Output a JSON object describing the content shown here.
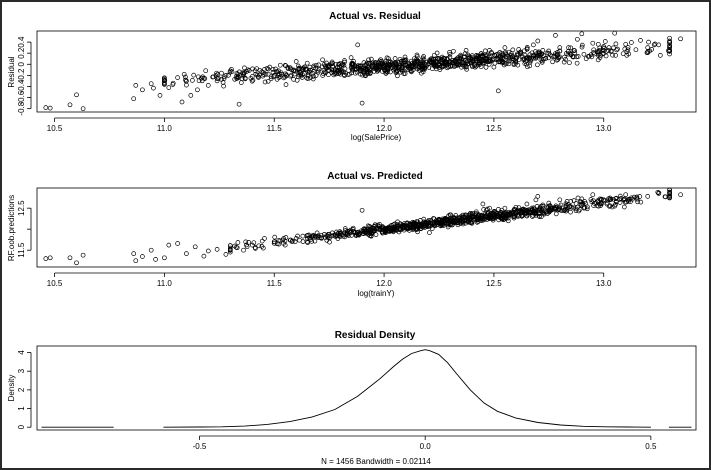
{
  "chart_data": [
    {
      "type": "scatter",
      "title": "Actual vs. Residual",
      "xlabel": "log(SalePrice)",
      "ylabel": "Residual",
      "x_ticks": [
        10.5,
        11.0,
        11.5,
        12.0,
        12.5,
        13.0
      ],
      "y_ticks": [
        -0.8,
        -0.6,
        -0.4,
        -0.2,
        0.0,
        0.2,
        0.4
      ],
      "xlim": [
        10.42,
        13.42
      ],
      "ylim": [
        -0.86,
        0.6
      ],
      "grid": false,
      "points": [
        [
          10.46,
          -0.78
        ],
        [
          10.48,
          -0.79
        ],
        [
          10.57,
          -0.73
        ],
        [
          10.6,
          -0.55
        ],
        [
          10.63,
          -0.8
        ],
        [
          10.86,
          -0.62
        ],
        [
          10.87,
          -0.38
        ],
        [
          10.9,
          -0.46
        ],
        [
          10.94,
          -0.35
        ],
        [
          10.95,
          -0.43
        ],
        [
          10.98,
          -0.56
        ],
        [
          11.02,
          -0.42
        ],
        [
          11.04,
          -0.34
        ],
        [
          11.06,
          -0.24
        ],
        [
          11.08,
          -0.68
        ],
        [
          11.09,
          -0.18
        ],
        [
          11.1,
          -0.3
        ],
        [
          11.12,
          -0.56
        ],
        [
          11.15,
          -0.46
        ],
        [
          11.18,
          -0.25
        ],
        [
          11.2,
          -0.38
        ],
        [
          11.22,
          -0.23
        ],
        [
          11.24,
          -0.3
        ],
        [
          11.26,
          -0.16
        ],
        [
          11.28,
          -0.2
        ],
        [
          11.3,
          -0.12
        ],
        [
          11.32,
          -0.27
        ],
        [
          11.34,
          -0.72
        ],
        [
          11.36,
          -0.18
        ],
        [
          11.38,
          -0.1
        ],
        [
          11.4,
          -0.22
        ],
        [
          11.42,
          -0.08
        ],
        [
          11.45,
          -0.15
        ],
        [
          11.48,
          -0.05
        ],
        [
          11.5,
          -0.2
        ],
        [
          11.52,
          -0.12
        ],
        [
          11.55,
          -0.02
        ],
        [
          11.58,
          -0.1
        ],
        [
          11.6,
          0.05
        ],
        [
          11.62,
          -0.15
        ],
        [
          11.65,
          0.02
        ],
        [
          11.68,
          -0.06
        ],
        [
          11.7,
          -0.12
        ],
        [
          11.72,
          0.08
        ],
        [
          11.75,
          -0.04
        ],
        [
          11.78,
          0.0
        ],
        [
          11.8,
          -0.1
        ],
        [
          11.82,
          0.04
        ],
        [
          11.85,
          0.12
        ],
        [
          11.88,
          0.35
        ],
        [
          11.9,
          -0.7
        ],
        [
          11.92,
          0.0
        ],
        [
          11.95,
          -0.04
        ],
        [
          11.98,
          0.06
        ],
        [
          12.0,
          -0.02
        ],
        [
          12.02,
          0.1
        ],
        [
          12.05,
          -0.05
        ],
        [
          12.08,
          0.02
        ],
        [
          12.1,
          0.08
        ],
        [
          12.12,
          -0.02
        ],
        [
          12.15,
          0.05
        ],
        [
          12.18,
          0.14
        ],
        [
          12.2,
          0.0
        ],
        [
          12.22,
          -0.08
        ],
        [
          12.25,
          0.08
        ],
        [
          12.28,
          0.02
        ],
        [
          12.3,
          0.18
        ],
        [
          12.32,
          -0.04
        ],
        [
          12.35,
          0.12
        ],
        [
          12.38,
          0.06
        ],
        [
          12.4,
          -0.02
        ],
        [
          12.42,
          0.16
        ],
        [
          12.45,
          0.08
        ],
        [
          12.48,
          0.25
        ],
        [
          12.5,
          0.1
        ],
        [
          12.52,
          -0.48
        ],
        [
          12.55,
          0.3
        ],
        [
          12.58,
          0.16
        ],
        [
          12.6,
          0.02
        ],
        [
          12.62,
          0.22
        ],
        [
          12.65,
          0.12
        ],
        [
          12.68,
          0.35
        ],
        [
          12.7,
          0.42
        ],
        [
          12.72,
          0.06
        ],
        [
          12.75,
          0.2
        ],
        [
          12.78,
          0.52
        ],
        [
          12.8,
          0.3
        ],
        [
          12.82,
          0.04
        ],
        [
          12.85,
          0.18
        ],
        [
          12.88,
          0.45
        ],
        [
          12.9,
          0.55
        ],
        [
          12.92,
          0.1
        ],
        [
          12.95,
          0.38
        ],
        [
          12.98,
          0.25
        ],
        [
          13.0,
          0.32
        ],
        [
          13.05,
          0.56
        ],
        [
          13.1,
          0.36
        ],
        [
          13.2,
          0.3
        ],
        [
          13.25,
          0.35
        ],
        [
          13.3,
          0.42
        ],
        [
          13.35,
          0.46
        ]
      ],
      "trend": {
        "x": [
          11.0,
          13.3
        ],
        "y": [
          -0.3,
          0.3
        ]
      },
      "scatter_sd": 0.07
    },
    {
      "type": "scatter",
      "title": "Actual vs. Predicted",
      "xlabel": "log(trainY)",
      "ylabel": "RF.oob.predictions",
      "x_ticks": [
        10.5,
        11.0,
        11.5,
        12.0,
        12.5,
        13.0
      ],
      "y_ticks": [
        11.5,
        12.0,
        12.5
      ],
      "y_tick_labels": [
        "11.5",
        "",
        "12.5"
      ],
      "xlim": [
        10.42,
        13.42
      ],
      "ylim": [
        11.1,
        12.98
      ],
      "grid": false,
      "points": [
        [
          10.46,
          11.3
        ],
        [
          10.48,
          11.32
        ],
        [
          10.57,
          11.32
        ],
        [
          10.6,
          11.2
        ],
        [
          10.63,
          11.38
        ],
        [
          10.86,
          11.42
        ],
        [
          10.87,
          11.25
        ],
        [
          10.9,
          11.35
        ],
        [
          10.94,
          11.5
        ],
        [
          10.96,
          11.28
        ],
        [
          11.0,
          11.32
        ],
        [
          11.02,
          11.62
        ],
        [
          11.06,
          11.66
        ],
        [
          11.1,
          11.42
        ],
        [
          11.14,
          11.58
        ],
        [
          11.18,
          11.36
        ],
        [
          11.2,
          11.48
        ],
        [
          11.24,
          11.52
        ],
        [
          11.28,
          11.4
        ],
        [
          11.32,
          11.6
        ],
        [
          11.36,
          11.5
        ],
        [
          11.4,
          11.62
        ],
        [
          11.45,
          11.55
        ],
        [
          11.5,
          11.7
        ],
        [
          11.55,
          11.62
        ],
        [
          11.6,
          11.78
        ],
        [
          11.65,
          11.7
        ],
        [
          11.7,
          11.8
        ],
        [
          11.75,
          11.88
        ],
        [
          11.8,
          11.82
        ],
        [
          11.85,
          11.92
        ],
        [
          11.9,
          12.45
        ],
        [
          11.95,
          11.96
        ],
        [
          12.0,
          11.98
        ],
        [
          12.05,
          12.05
        ],
        [
          12.1,
          12.08
        ],
        [
          12.15,
          12.12
        ],
        [
          12.2,
          12.18
        ],
        [
          12.25,
          12.22
        ],
        [
          12.3,
          12.25
        ],
        [
          12.35,
          12.3
        ],
        [
          12.4,
          12.36
        ],
        [
          12.45,
          12.6
        ],
        [
          12.48,
          12.5
        ],
        [
          12.5,
          12.42
        ],
        [
          12.55,
          12.5
        ],
        [
          12.6,
          12.52
        ],
        [
          12.65,
          12.6
        ],
        [
          12.7,
          12.78
        ],
        [
          12.75,
          12.62
        ],
        [
          12.8,
          12.7
        ],
        [
          12.85,
          12.66
        ],
        [
          12.9,
          12.72
        ],
        [
          12.95,
          12.82
        ],
        [
          13.0,
          12.7
        ],
        [
          13.05,
          12.55
        ],
        [
          13.1,
          12.82
        ],
        [
          13.15,
          12.74
        ],
        [
          13.2,
          12.78
        ],
        [
          13.25,
          12.85
        ],
        [
          13.3,
          12.8
        ],
        [
          13.35,
          12.82
        ]
      ],
      "trend": {
        "x": [
          11.3,
          13.3
        ],
        "y": [
          11.55,
          12.82
        ]
      },
      "scatter_sd": 0.06
    },
    {
      "type": "line",
      "title": "Residual Density",
      "xlabel": "N = 1456   Bandwidth = 0.02114",
      "ylabel": "Density",
      "x_ticks": [
        -0.5,
        0.0,
        0.5
      ],
      "y_ticks": [
        0,
        1,
        2,
        3,
        4
      ],
      "xlim": [
        -0.86,
        0.6
      ],
      "ylim": [
        -0.15,
        4.35
      ],
      "grid": false,
      "segments": [
        {
          "x": [
            -0.85,
            -0.84,
            -0.82,
            -0.8,
            -0.78,
            -0.76,
            -0.74,
            -0.72,
            -0.7,
            -0.69
          ],
          "y": [
            0.0,
            0.0,
            0.0,
            0.0,
            0.0,
            0.0,
            0.0,
            0.0,
            0.0,
            0.0
          ]
        },
        {
          "x": [
            -0.58,
            -0.5,
            -0.45,
            -0.4,
            -0.35,
            -0.3,
            -0.25,
            -0.2,
            -0.15,
            -0.1,
            -0.07,
            -0.05,
            -0.03,
            -0.01,
            0.0,
            0.01,
            0.03,
            0.05,
            0.07,
            0.1,
            0.13,
            0.16,
            0.2,
            0.25,
            0.3,
            0.35,
            0.4,
            0.45,
            0.5
          ],
          "y": [
            0.0,
            0.01,
            0.02,
            0.06,
            0.15,
            0.3,
            0.55,
            0.95,
            1.65,
            2.6,
            3.25,
            3.65,
            3.95,
            4.1,
            4.15,
            4.1,
            3.9,
            3.45,
            2.85,
            2.0,
            1.3,
            0.85,
            0.5,
            0.25,
            0.12,
            0.05,
            0.02,
            0.01,
            0.0
          ]
        },
        {
          "x": [
            0.54,
            0.56,
            0.58,
            0.59
          ],
          "y": [
            0.0,
            0.0,
            0.0,
            0.0
          ]
        }
      ]
    }
  ]
}
